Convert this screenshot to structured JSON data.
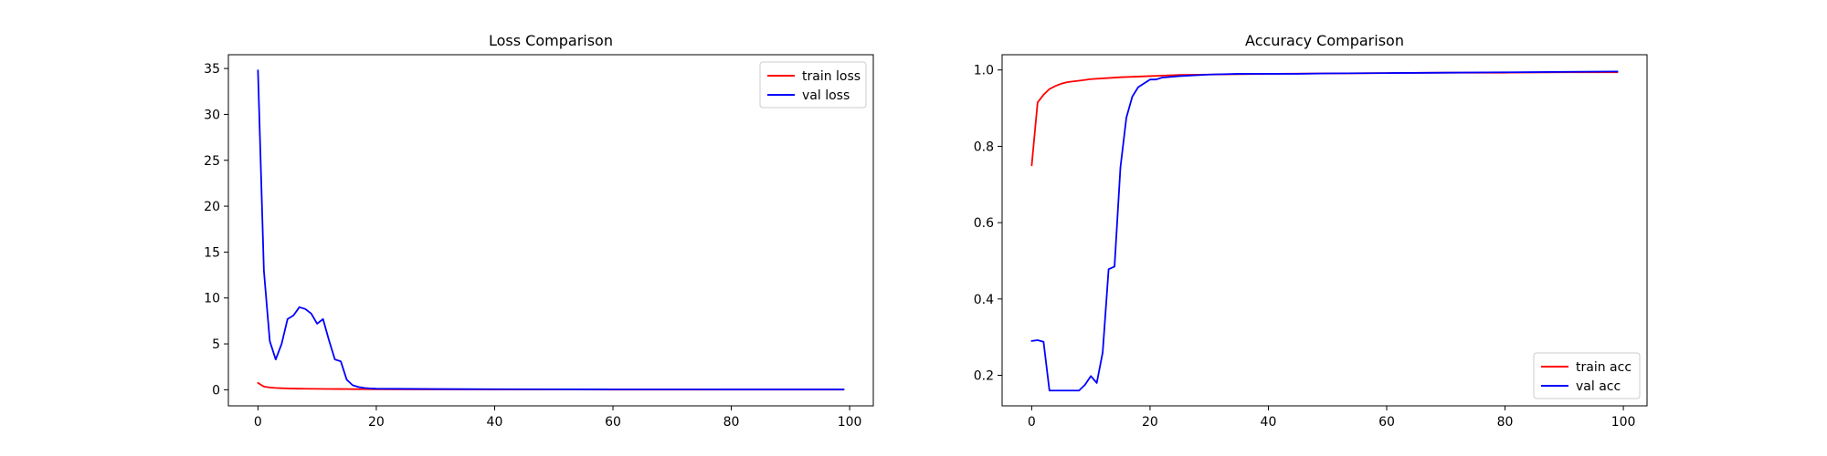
{
  "chart_data": [
    {
      "type": "line",
      "title": "Loss Comparison",
      "xlabel": "",
      "ylabel": "",
      "xlim": [
        -5,
        104
      ],
      "ylim": [
        -1.75,
        36.5
      ],
      "xticks": [
        0,
        20,
        40,
        60,
        80,
        100
      ],
      "yticks": [
        0,
        5,
        10,
        15,
        20,
        25,
        30,
        35
      ],
      "grid": false,
      "legend_position": "upper right",
      "series": [
        {
          "name": "train loss",
          "color": "#ff0000",
          "x": [
            0,
            1,
            2,
            3,
            4,
            5,
            6,
            7,
            8,
            10,
            12,
            14,
            16,
            18,
            20,
            30,
            40,
            50,
            60,
            70,
            80,
            90,
            99
          ],
          "values": [
            0.75,
            0.35,
            0.25,
            0.2,
            0.17,
            0.15,
            0.13,
            0.12,
            0.11,
            0.1,
            0.09,
            0.08,
            0.07,
            0.06,
            0.05,
            0.04,
            0.03,
            0.03,
            0.02,
            0.02,
            0.02,
            0.02,
            0.02
          ]
        },
        {
          "name": "val loss",
          "color": "#0000ff",
          "x": [
            0,
            1,
            2,
            3,
            4,
            5,
            6,
            7,
            8,
            9,
            10,
            11,
            12,
            13,
            14,
            15,
            16,
            17,
            18,
            19,
            20,
            30,
            40,
            50,
            60,
            70,
            80,
            90,
            99
          ],
          "values": [
            34.8,
            13.0,
            5.3,
            3.3,
            5.0,
            7.7,
            8.1,
            9.0,
            8.8,
            8.3,
            7.2,
            7.7,
            5.4,
            3.3,
            3.1,
            1.1,
            0.5,
            0.3,
            0.2,
            0.15,
            0.12,
            0.08,
            0.06,
            0.05,
            0.04,
            0.04,
            0.03,
            0.03,
            0.03
          ]
        }
      ]
    },
    {
      "type": "line",
      "title": "Accuracy Comparison",
      "xlabel": "",
      "ylabel": "",
      "xlim": [
        -5,
        104
      ],
      "ylim": [
        0.12,
        1.04
      ],
      "xticks": [
        0,
        20,
        40,
        60,
        80,
        100
      ],
      "yticks": [
        0.2,
        0.4,
        0.6,
        0.8,
        1.0
      ],
      "ytick_labels": [
        "0.2",
        "0.4",
        "0.6",
        "0.8",
        "1.0"
      ],
      "grid": false,
      "legend_position": "lower right",
      "series": [
        {
          "name": "train acc",
          "color": "#ff0000",
          "x": [
            0,
            1,
            2,
            3,
            4,
            5,
            6,
            7,
            8,
            9,
            10,
            12,
            15,
            20,
            25,
            30,
            40,
            50,
            60,
            70,
            80,
            90,
            99
          ],
          "values": [
            0.75,
            0.915,
            0.935,
            0.95,
            0.958,
            0.964,
            0.968,
            0.97,
            0.972,
            0.974,
            0.976,
            0.978,
            0.981,
            0.984,
            0.987,
            0.988,
            0.99,
            0.991,
            0.992,
            0.993,
            0.993,
            0.994,
            0.994
          ]
        },
        {
          "name": "val acc",
          "color": "#0000ff",
          "x": [
            0,
            1,
            2,
            3,
            4,
            5,
            6,
            7,
            8,
            9,
            10,
            11,
            12,
            13,
            14,
            15,
            16,
            17,
            18,
            19,
            20,
            21,
            22,
            25,
            30,
            35,
            40,
            45,
            50,
            60,
            70,
            80,
            90,
            99
          ],
          "values": [
            0.29,
            0.292,
            0.288,
            0.16,
            0.16,
            0.16,
            0.16,
            0.16,
            0.16,
            0.175,
            0.198,
            0.18,
            0.26,
            0.478,
            0.485,
            0.745,
            0.875,
            0.93,
            0.955,
            0.965,
            0.975,
            0.975,
            0.98,
            0.984,
            0.988,
            0.99,
            0.99,
            0.99,
            0.991,
            0.992,
            0.993,
            0.994,
            0.995,
            0.996
          ]
        }
      ]
    }
  ]
}
